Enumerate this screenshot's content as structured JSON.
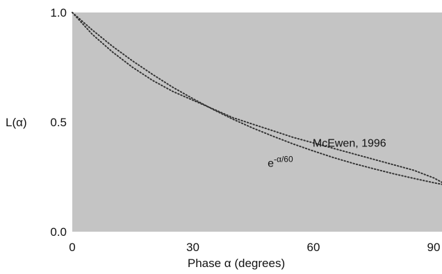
{
  "chart_data": {
    "type": "line",
    "title": "",
    "xlabel": "Phase α (degrees)",
    "ylabel": "L(α)",
    "xlim": [
      0,
      92
    ],
    "ylim": [
      0,
      1
    ],
    "x_ticks": [
      "0",
      "30",
      "60",
      "90"
    ],
    "y_ticks": [
      "0.0",
      "0.5",
      "1.0"
    ],
    "grid": false,
    "legend": "none",
    "plot_background": "#c4c4c4",
    "line_color": "#333333",
    "series": [
      {
        "label_prefix": "McEwen, 1996",
        "x": [
          0,
          5,
          10,
          15,
          20,
          25,
          30,
          35,
          40,
          45,
          50,
          55,
          60,
          65,
          70,
          75,
          80,
          85,
          90,
          92
        ],
        "y": [
          1.0,
          0.9,
          0.82,
          0.75,
          0.69,
          0.64,
          0.6,
          0.56,
          0.52,
          0.49,
          0.46,
          0.43,
          0.405,
          0.38,
          0.355,
          0.33,
          0.305,
          0.28,
          0.245,
          0.225
        ]
      },
      {
        "label_base": "e",
        "label_sup": "-α/60",
        "function": "exp(-x/60)",
        "x": [
          0,
          5,
          10,
          15,
          20,
          25,
          30,
          35,
          40,
          45,
          50,
          55,
          60,
          65,
          70,
          75,
          80,
          85,
          90,
          92
        ],
        "y": [
          1.0,
          0.92,
          0.846,
          0.779,
          0.717,
          0.659,
          0.607,
          0.558,
          0.513,
          0.472,
          0.435,
          0.4,
          0.368,
          0.338,
          0.311,
          0.287,
          0.264,
          0.243,
          0.223,
          0.216
        ]
      }
    ],
    "annotations": {
      "mcewen": {
        "text": "McEwen, 1996",
        "x": 65,
        "y": 0.47
      },
      "exp": {
        "base": "e",
        "sup": "-α/60",
        "x": 50,
        "y": 0.28
      }
    }
  }
}
